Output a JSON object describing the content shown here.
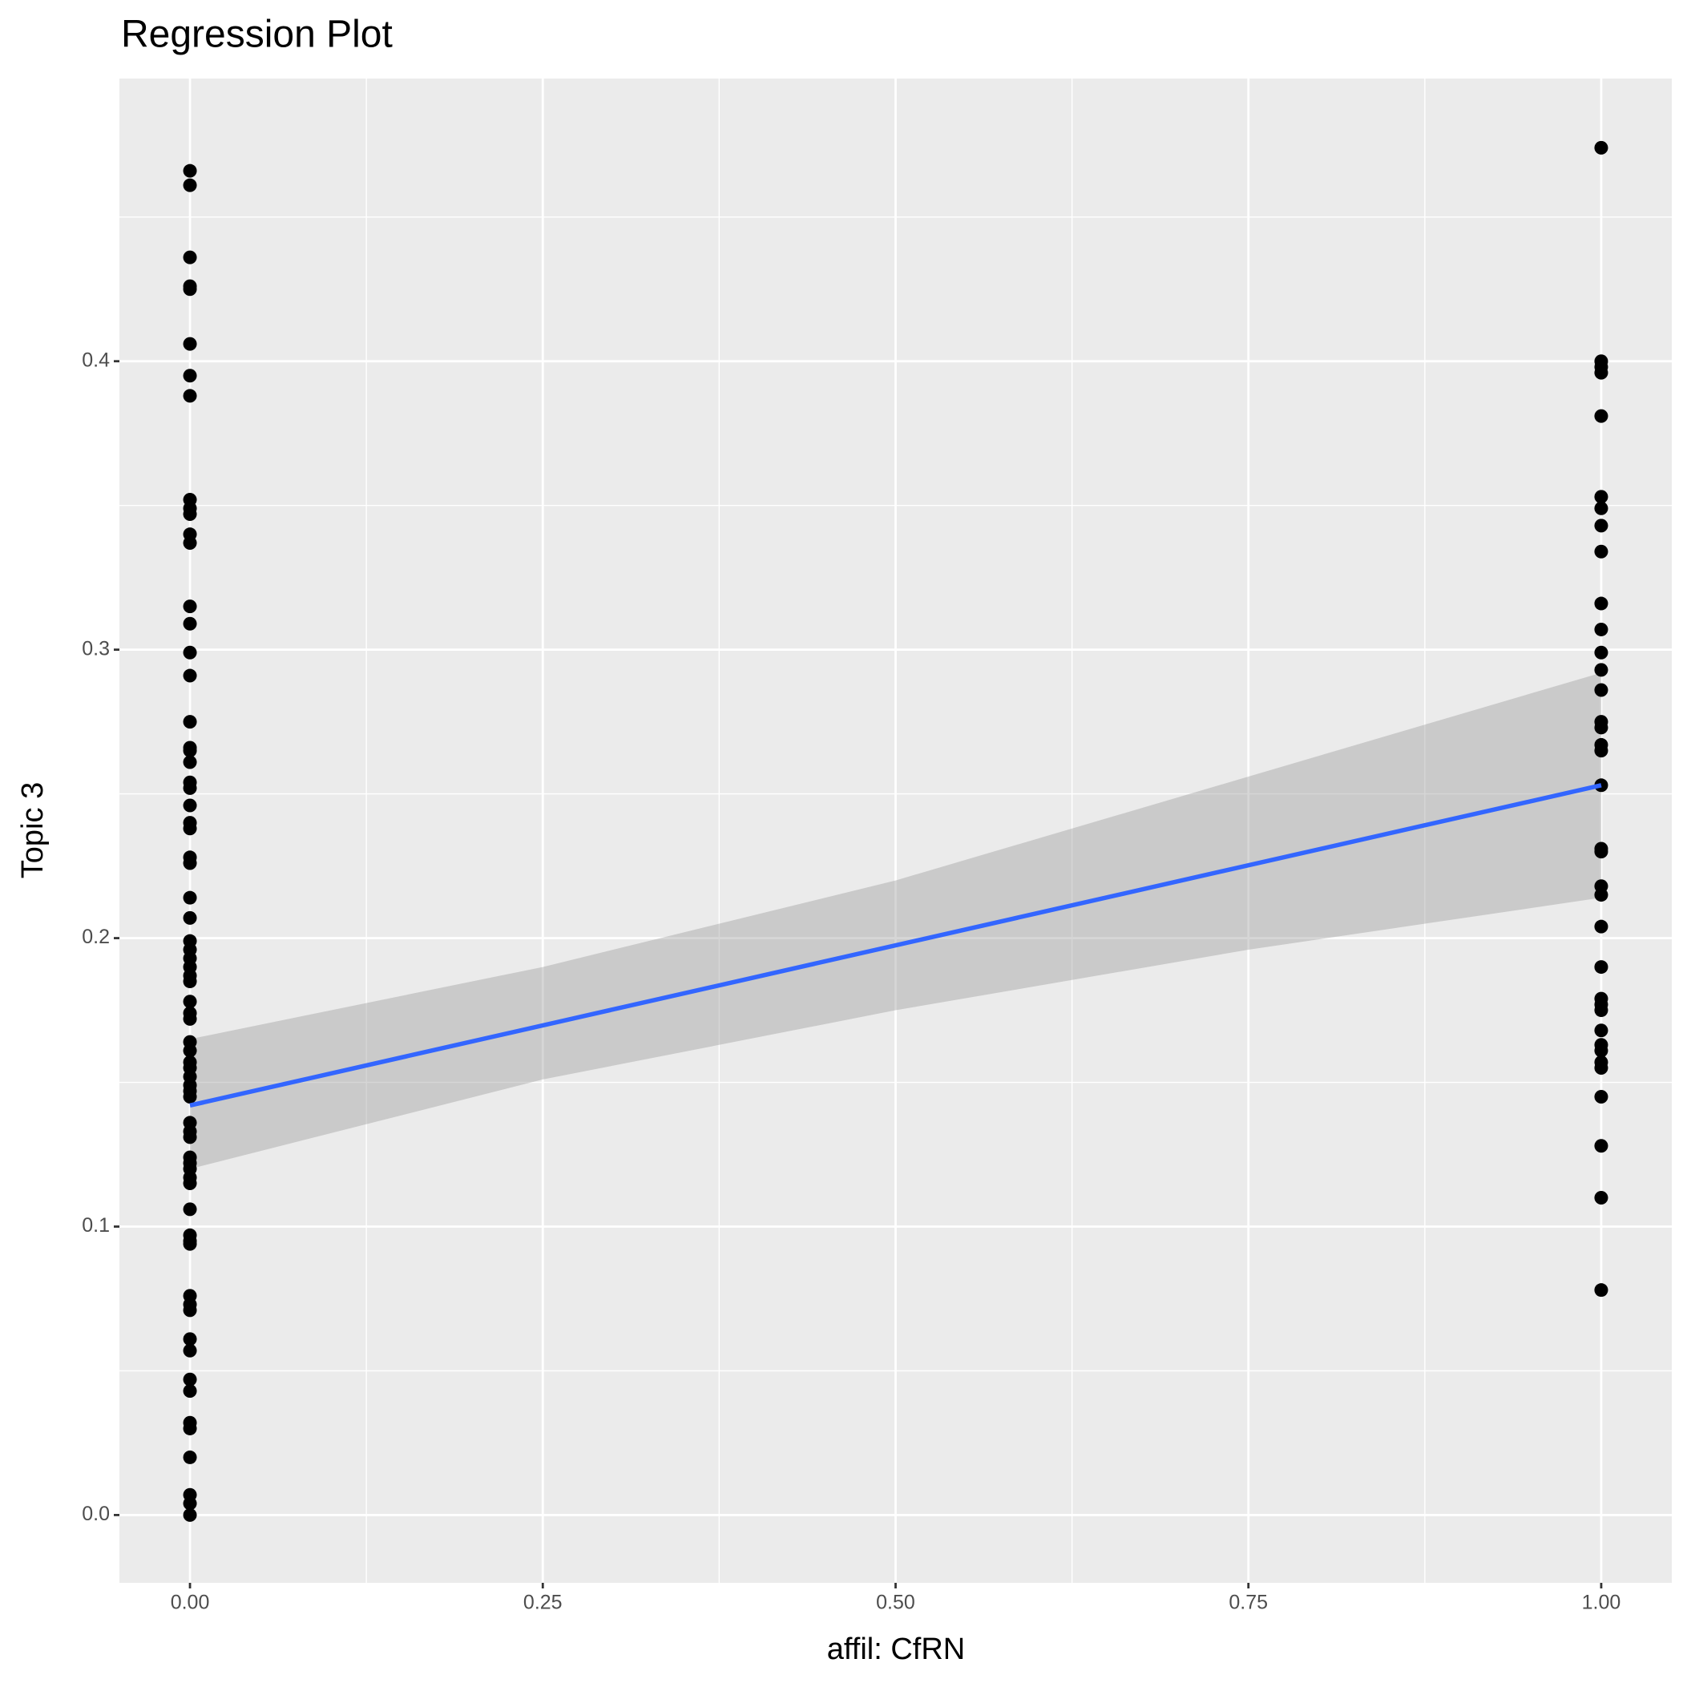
{
  "chart_data": {
    "type": "scatter",
    "title": "Regression Plot",
    "x_label": "affil: CfRN",
    "y_label": "Topic 3",
    "xlim": [
      -0.05,
      1.05
    ],
    "ylim": [
      -0.0235,
      0.498
    ],
    "xticks": [
      {
        "value": 0,
        "label": "0.00"
      },
      {
        "value": 0.25,
        "label": "0.25"
      },
      {
        "value": 0.5,
        "label": "0.50"
      },
      {
        "value": 0.75,
        "label": "0.75"
      },
      {
        "value": 1,
        "label": "1.00"
      }
    ],
    "yticks": [
      {
        "value": 0,
        "label": "0.0"
      },
      0.1,
      0.2,
      0.3,
      0.4
    ],
    "grid": true,
    "points": {
      "color": "#000000",
      "x": [
        0,
        0,
        0,
        0,
        0,
        0,
        0,
        0,
        0,
        0,
        0,
        0,
        0,
        0,
        0,
        0,
        0,
        0,
        0,
        0,
        0,
        0,
        0,
        0,
        0,
        0,
        0,
        0,
        0,
        0,
        0,
        0,
        0,
        0,
        0,
        0,
        0,
        0,
        0,
        0,
        0,
        0,
        0,
        0,
        0,
        0,
        0,
        0,
        0,
        0,
        0,
        0,
        0,
        0,
        0,
        0,
        0,
        0,
        0,
        0,
        0,
        0,
        0,
        0,
        0,
        0,
        0,
        0,
        0,
        0,
        0,
        0,
        1,
        1,
        1,
        1,
        1,
        1,
        1,
        1,
        1,
        1,
        1,
        1,
        1,
        1,
        1,
        1,
        1,
        1,
        1,
        1,
        1,
        1,
        1,
        1,
        1,
        1,
        1,
        1,
        1,
        1,
        1,
        1,
        1,
        1,
        1,
        1,
        1
      ],
      "y": [
        0.466,
        0.461,
        0.436,
        0.426,
        0.425,
        0.406,
        0.395,
        0.388,
        0.352,
        0.349,
        0.347,
        0.34,
        0.337,
        0.315,
        0.309,
        0.299,
        0.291,
        0.275,
        0.266,
        0.265,
        0.261,
        0.254,
        0.252,
        0.246,
        0.24,
        0.238,
        0.228,
        0.226,
        0.214,
        0.207,
        0.199,
        0.196,
        0.193,
        0.19,
        0.187,
        0.185,
        0.178,
        0.174,
        0.172,
        0.164,
        0.161,
        0.157,
        0.155,
        0.152,
        0.149,
        0.147,
        0.145,
        0.136,
        0.133,
        0.131,
        0.124,
        0.122,
        0.12,
        0.117,
        0.115,
        0.106,
        0.097,
        0.095,
        0.094,
        0.076,
        0.073,
        0.071,
        0.061,
        0.057,
        0.047,
        0.043,
        0.032,
        0.03,
        0.02,
        0.007,
        0.004,
        0.0,
        0.474,
        0.4,
        0.398,
        0.396,
        0.381,
        0.353,
        0.349,
        0.343,
        0.334,
        0.316,
        0.307,
        0.299,
        0.293,
        0.286,
        0.275,
        0.273,
        0.267,
        0.265,
        0.253,
        0.231,
        0.23,
        0.218,
        0.215,
        0.204,
        0.19,
        0.179,
        0.177,
        0.175,
        0.168,
        0.163,
        0.161,
        0.157,
        0.155,
        0.145,
        0.128,
        0.11,
        0.078
      ]
    },
    "fit": {
      "color": "#3366ff",
      "x": [
        0,
        1
      ],
      "y": [
        0.142,
        0.253
      ]
    },
    "band": {
      "color": "#999999",
      "x": [
        0,
        0.25,
        0.5,
        0.75,
        1
      ],
      "lower": [
        0.12,
        0.151,
        0.175,
        0.196,
        0.214
      ],
      "upper": [
        0.165,
        0.19,
        0.22,
        0.256,
        0.292
      ]
    }
  }
}
